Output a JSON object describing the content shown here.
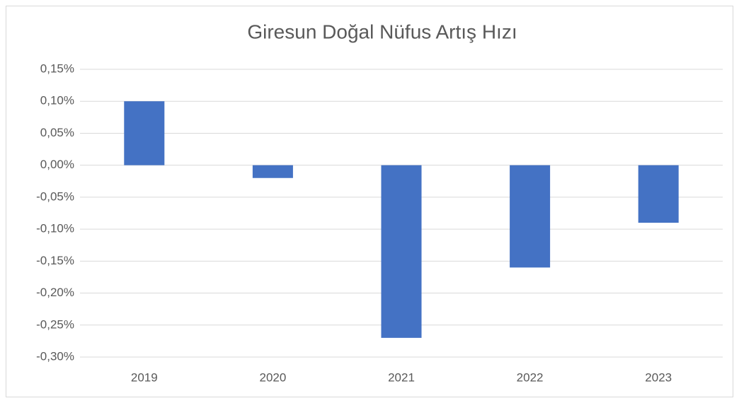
{
  "chart_data": {
    "type": "bar",
    "title": "Giresun Doğal Nüfus Artış Hızı",
    "categories": [
      "2019",
      "2020",
      "2021",
      "2022",
      "2023"
    ],
    "values": [
      0.1,
      -0.02,
      -0.27,
      -0.16,
      -0.09
    ],
    "color": "#4472c4",
    "ylim": [
      -0.3,
      0.15
    ],
    "yticks": [
      {
        "value": 0.15,
        "label": "0,15%"
      },
      {
        "value": 0.1,
        "label": "0,10%"
      },
      {
        "value": 0.05,
        "label": "0,05%"
      },
      {
        "value": 0,
        "label": "0,00%"
      },
      {
        "value": -0.05,
        "label": "-0,05%"
      },
      {
        "value": -0.1,
        "label": "-0,10%"
      },
      {
        "value": -0.15,
        "label": "-0,15%"
      },
      {
        "value": -0.2,
        "label": "-0,20%"
      },
      {
        "value": -0.25,
        "label": "-0,25%"
      },
      {
        "value": -0.3,
        "label": "-0,30%"
      }
    ],
    "grid": true
  }
}
